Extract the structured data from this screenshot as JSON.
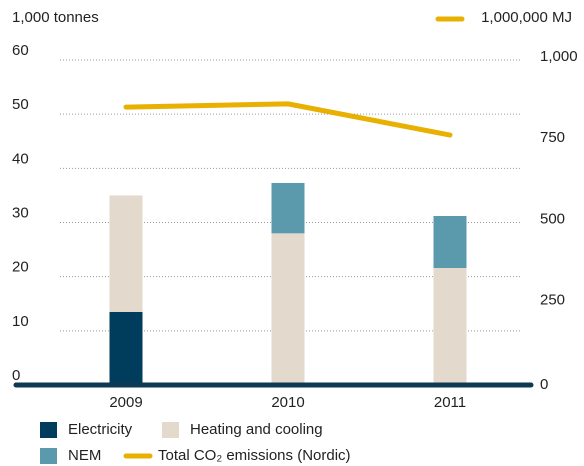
{
  "chart_data": {
    "type": "bar",
    "y_label": "1,000 tonnes",
    "y2_label": "1,000,000 MJ",
    "categories": [
      "2009",
      "2010",
      "2011"
    ],
    "series": [
      {
        "name": "Electricity",
        "color": "#003d5c",
        "values": [
          13.5,
          0,
          0
        ]
      },
      {
        "name": "Heating and cooling",
        "color": "#e3d9cc",
        "values": [
          21.5,
          28,
          21.6
        ]
      },
      {
        "name": "NEM",
        "color": "#5b9aad",
        "values": [
          0,
          9.3,
          9.6
        ]
      },
      {
        "name": "Total CO₂ emissions (Nordic)",
        "color": "#e8b000",
        "values": [
          855,
          865,
          769
        ],
        "axis": "y2",
        "type": "line"
      }
    ],
    "ylim": [
      0,
      60
    ],
    "yticks": [
      0,
      10,
      20,
      30,
      40,
      50,
      60
    ],
    "y2lim": [
      0,
      1000
    ],
    "y2ticks": [
      0,
      250,
      500,
      750,
      {
        "value": 1000,
        "label": "1,000"
      }
    ],
    "grid": true
  }
}
